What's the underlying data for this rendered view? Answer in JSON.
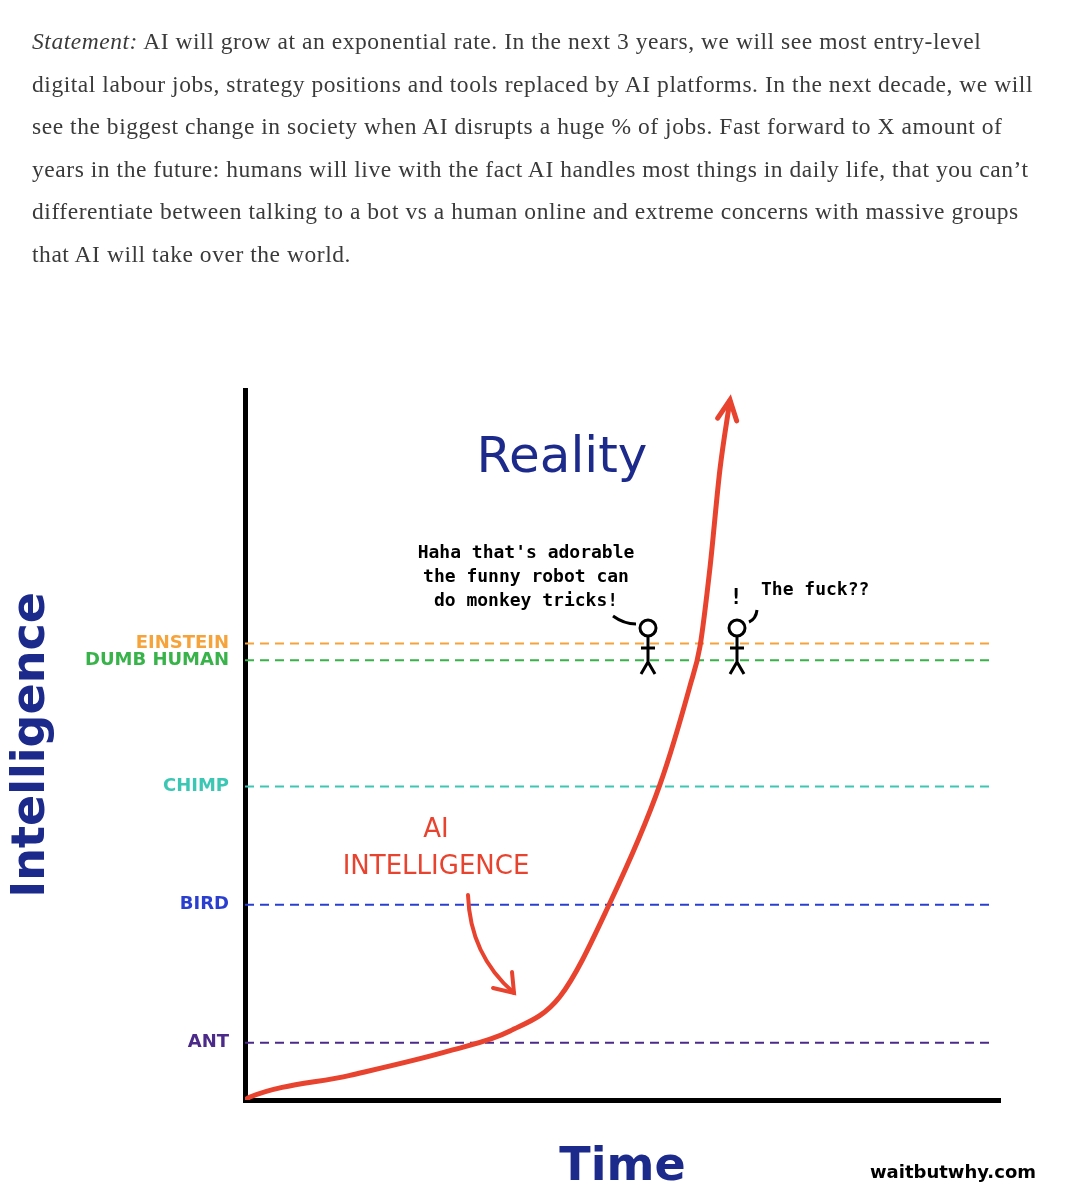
{
  "statement": {
    "label": "Statement:",
    "text": "AI will grow at an exponential rate. In the next 3 years, we will see most entry-level digital labour jobs, strategy positions and tools replaced by AI platforms. In the next decade, we will see the biggest change in society when AI disrupts a huge % of jobs. Fast forward to X amount of years in the future: humans will live with the fact AI handles most things in daily life, that you can’t differentiate between talking to a bot vs a human online and extreme concerns with massive groups that AI will take over the world."
  },
  "chart_data": {
    "type": "line",
    "title": "Reality",
    "x_label": "Time",
    "y_label": "Intelligence",
    "x": [
      0,
      5,
      105,
      205,
      265,
      315,
      365,
      415,
      445,
      455,
      465,
      475,
      485
    ],
    "values": [
      0,
      3,
      25,
      50,
      70,
      105,
      200,
      320,
      420,
      460,
      540,
      640,
      710
    ],
    "color": "#e8432e",
    "xlim": [
      0,
      755
    ],
    "ylim": [
      0,
      720
    ],
    "yticks": [
      {
        "value": 58,
        "label": "ANT"
      },
      {
        "value": 198,
        "label": "BIRD"
      },
      {
        "value": 318,
        "label": "CHIMP"
      },
      {
        "value": 446,
        "label": "DUMB HUMAN"
      },
      {
        "value": 463,
        "label": "EINSTEIN"
      }
    ],
    "grid": true,
    "tick_labels": "y",
    "annotations": {
      "series_label": "AI INTELLIGENCE",
      "speech_1": [
        "Haha that's adorable",
        "the funny robot can",
        "do monkey tricks!"
      ],
      "exclamation": "!",
      "speech_2": "The fuck??"
    }
  },
  "source": "waitbutwhy.com"
}
